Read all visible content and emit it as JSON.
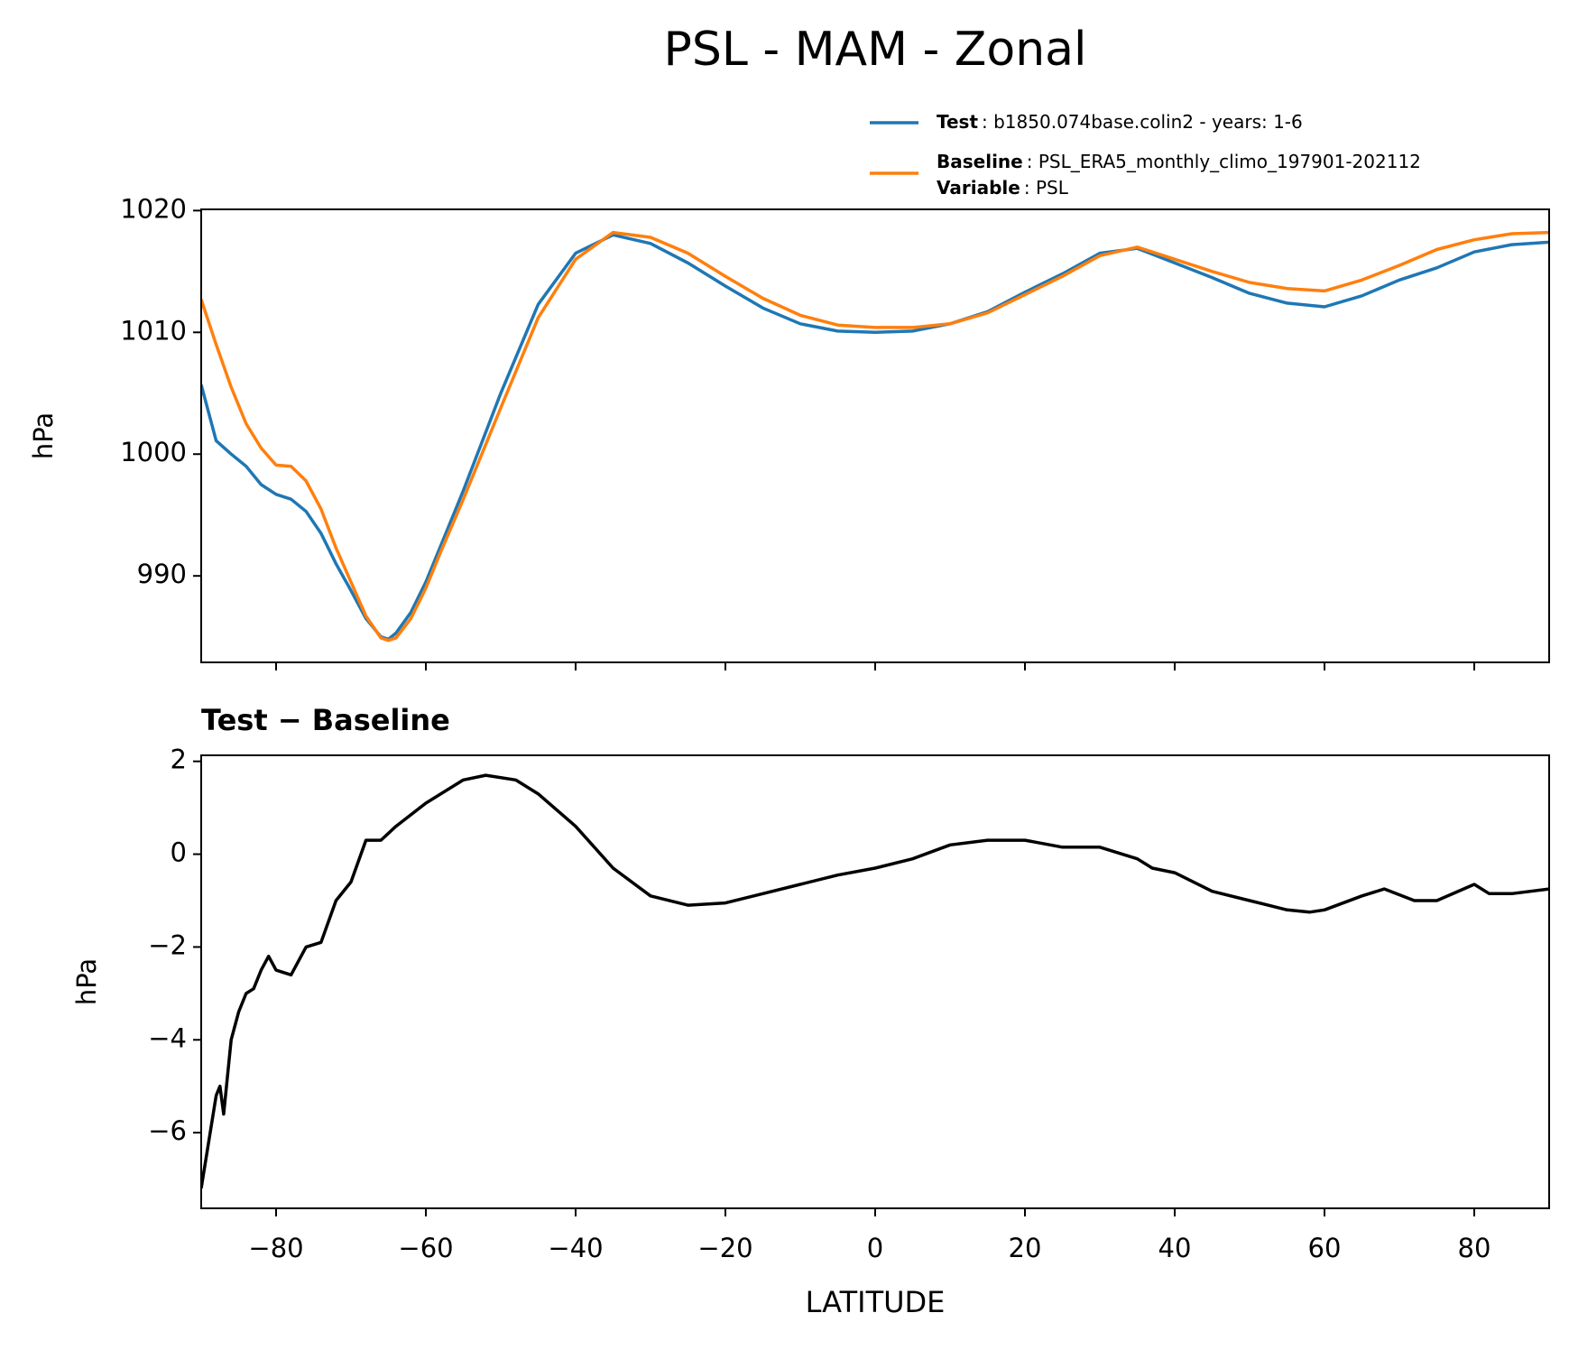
{
  "title": "PSL - MAM - Zonal",
  "chart_data": [
    {
      "type": "line",
      "ylabel": "hPa",
      "x": [
        -90,
        -88,
        -86,
        -84,
        -82,
        -80,
        -78,
        -76,
        -74,
        -72,
        -70,
        -68,
        -66,
        -65,
        -64,
        -62,
        -60,
        -58,
        -55,
        -50,
        -45,
        -40,
        -35,
        -30,
        -25,
        -20,
        -15,
        -10,
        -5,
        0,
        5,
        10,
        15,
        20,
        25,
        30,
        35,
        40,
        45,
        50,
        55,
        60,
        65,
        70,
        75,
        80,
        85,
        90
      ],
      "series": [
        {
          "name": "Test",
          "description": ": b1850.074base.colin2 - years: 1-6",
          "color": "#1f77b4",
          "values": [
            1005.7,
            1001.1,
            1000,
            999,
            997.5,
            996.7,
            996.3,
            995.3,
            993.5,
            991,
            988.8,
            986.5,
            985,
            984.8,
            985.3,
            987,
            989.5,
            992.5,
            997,
            1005,
            1012.3,
            1016.5,
            1018,
            1017.3,
            1015.7,
            1013.8,
            1012,
            1010.7,
            1010.1,
            1010,
            1010.1,
            1010.7,
            1011.7,
            1013.3,
            1014.8,
            1016.5,
            1016.9,
            1015.7,
            1014.5,
            1013.2,
            1012.4,
            1012.1,
            1013,
            1014.3,
            1015.3,
            1016.6,
            1017.2,
            1017.4
          ]
        },
        {
          "name": "Baseline",
          "description": ": PSL_ERA5_monthly_climo_197901-202112",
          "color": "#ff7f0e",
          "values": [
            1012.7,
            1009,
            1005.5,
            1002.5,
            1000.5,
            999.1,
            999,
            997.8,
            995.5,
            992.3,
            989.5,
            986.7,
            984.9,
            984.7,
            984.9,
            986.5,
            989,
            992,
            996.3,
            1003.8,
            1011.2,
            1016,
            1018.2,
            1017.8,
            1016.5,
            1014.6,
            1012.8,
            1011.4,
            1010.6,
            1010.4,
            1010.4,
            1010.7,
            1011.6,
            1013.1,
            1014.6,
            1016.3,
            1017,
            1016,
            1015,
            1014.1,
            1013.6,
            1013.4,
            1014.3,
            1015.5,
            1016.8,
            1017.6,
            1018.1,
            1018.2
          ]
        }
      ],
      "legend_extra": {
        "name": "Variable",
        "description": ": PSL"
      },
      "xlim": [
        -90,
        90
      ],
      "xticks": [
        -80,
        -60,
        -40,
        -20,
        0,
        20,
        40,
        60,
        80
      ],
      "ylim": [
        982.9,
        1020.1
      ],
      "yticks": [
        990,
        1000,
        1010,
        1020
      ]
    },
    {
      "type": "line",
      "title": "Test − Baseline",
      "ylabel": "hPa",
      "xlabel": "LATITUDE",
      "x": [
        -90,
        -89,
        -88,
        -87.5,
        -87,
        -86,
        -85,
        -84,
        -83,
        -82,
        -81,
        -80,
        -78,
        -76,
        -74,
        -72,
        -70,
        -68,
        -66,
        -64,
        -60,
        -55,
        -52,
        -48,
        -45,
        -40,
        -35,
        -30,
        -25,
        -20,
        -15,
        -10,
        -5,
        0,
        5,
        10,
        15,
        20,
        25,
        30,
        35,
        37,
        40,
        45,
        50,
        55,
        58,
        60,
        65,
        68,
        72,
        75,
        80,
        82,
        85,
        90
      ],
      "series": [
        {
          "name": "Test − Baseline",
          "color": "#000000",
          "values": [
            -7.2,
            -6.2,
            -5.2,
            -5.0,
            -5.6,
            -4.0,
            -3.4,
            -3.0,
            -2.9,
            -2.5,
            -2.2,
            -2.5,
            -2.6,
            -2.0,
            -1.9,
            -1.0,
            -0.6,
            0.3,
            0.3,
            0.6,
            1.1,
            1.6,
            1.7,
            1.6,
            1.3,
            0.6,
            -0.3,
            -0.9,
            -1.1,
            -1.05,
            -0.85,
            -0.65,
            -0.45,
            -0.3,
            -0.1,
            0.2,
            0.3,
            0.3,
            0.15,
            0.15,
            -0.1,
            -0.3,
            -0.4,
            -0.8,
            -1.0,
            -1.2,
            -1.25,
            -1.2,
            -0.9,
            -0.75,
            -1.0,
            -1.0,
            -0.65,
            -0.85,
            -0.85,
            -0.75
          ]
        }
      ],
      "xlim": [
        -90,
        90
      ],
      "xticks": [
        {
          "value": -80,
          "label": "−80"
        },
        {
          "value": -60,
          "label": "−60"
        },
        {
          "value": -40,
          "label": "−40"
        },
        {
          "value": -20,
          "label": "−20"
        },
        0,
        20,
        40,
        60,
        80
      ],
      "ylim": [
        -7.63,
        2.13
      ],
      "yticks": [
        {
          "value": -6,
          "label": "−6"
        },
        {
          "value": -4,
          "label": "−4"
        },
        {
          "value": -2,
          "label": "−2"
        },
        0,
        2
      ]
    }
  ]
}
